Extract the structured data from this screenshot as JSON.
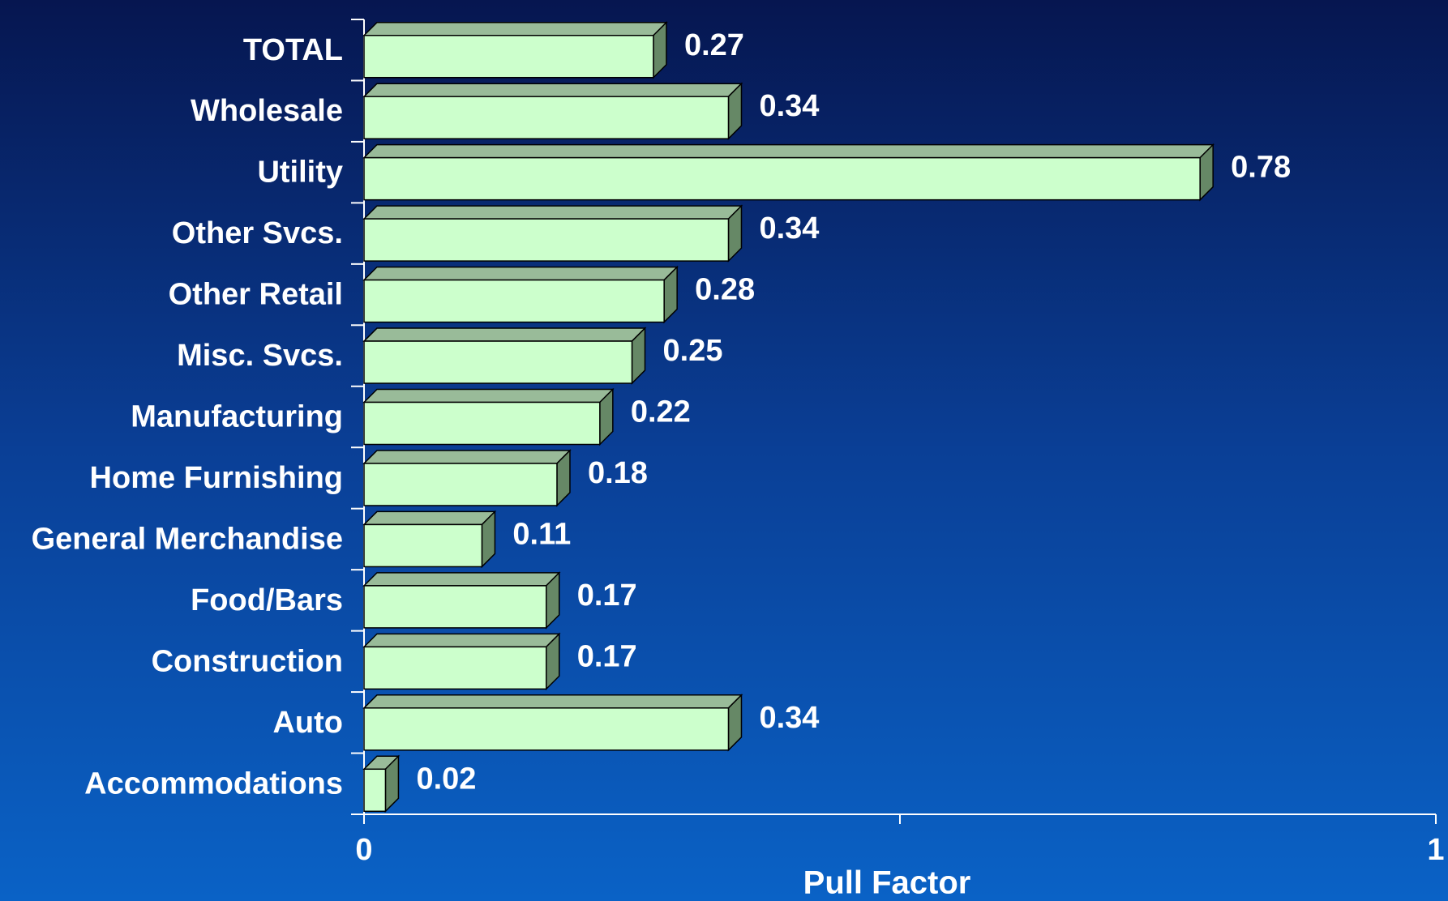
{
  "chart_data": {
    "type": "bar3d_horizontal",
    "categories": [
      "TOTAL",
      "Wholesale",
      "Utility",
      "Other Svcs.",
      "Other Retail",
      "Misc. Svcs.",
      "Manufacturing",
      "Home Furnishing",
      "General Merchandise",
      "Food/Bars",
      "Construction",
      "Auto",
      "Accommodations"
    ],
    "values": [
      0.27,
      0.34,
      0.78,
      0.34,
      0.28,
      0.25,
      0.22,
      0.18,
      0.11,
      0.17,
      0.17,
      0.34,
      0.02
    ],
    "color": "#ccffcc",
    "xlim": [
      0,
      1
    ],
    "xticks": [
      0,
      1
    ],
    "minor_xticks": [
      0.5
    ],
    "x_label": "Pull Factor"
  }
}
